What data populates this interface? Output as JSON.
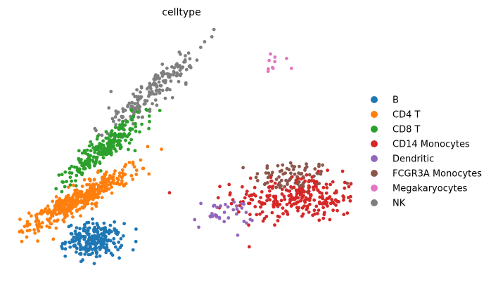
{
  "chart_data": {
    "type": "scatter",
    "title": "celltype",
    "xlabel": "",
    "ylabel": "",
    "axes_visible": false,
    "grid": false,
    "legend_position": "right",
    "xlim": [
      -12,
      12
    ],
    "ylim": [
      -12,
      12
    ],
    "series": [
      {
        "name": "B",
        "color": "#1f77b4"
      },
      {
        "name": "CD4 T",
        "color": "#ff7f0e"
      },
      {
        "name": "CD8 T",
        "color": "#2ca02c"
      },
      {
        "name": "CD14 Monocytes",
        "color": "#d62728"
      },
      {
        "name": "Dendritic",
        "color": "#9467bd"
      },
      {
        "name": "FCGR3A Monocytes",
        "color": "#8c564b"
      },
      {
        "name": "Megakaryocytes",
        "color": "#e377c2"
      },
      {
        "name": "NK",
        "color": "#7f7f7f"
      }
    ],
    "clusters": [
      {
        "series": 5,
        "cx": 7.8,
        "cy": -2.5,
        "sx": 1.4,
        "sy": 0.8,
        "n": 90
      },
      {
        "series": 3,
        "cx": 8.2,
        "cy": -4.5,
        "sx": 2.3,
        "sy": 1.1,
        "n": 260
      },
      {
        "series": 4,
        "cx": 2.8,
        "cy": -6.0,
        "sx": 1.1,
        "sy": 0.7,
        "n": 35
      },
      {
        "series": 0,
        "cx": -6.5,
        "cy": -8.5,
        "sx": 1.0,
        "sy": 0.8,
        "n": 230
      },
      {
        "series": 7,
        "cx": -2.5,
        "cy": 5.5,
        "sx": 1.7,
        "sy": 1.9,
        "n": 180
      },
      {
        "series": 2,
        "cx": -5.5,
        "cy": 0.5,
        "sx": 1.5,
        "sy": 1.6,
        "n": 230
      },
      {
        "series": 1,
        "cx": -7.5,
        "cy": -4.5,
        "sx": 2.0,
        "sy": 1.5,
        "n": 420
      },
      {
        "series": 6,
        "cx": 6.2,
        "cy": 8.2,
        "sx": 0.6,
        "sy": 0.5,
        "n": 10
      }
    ]
  }
}
